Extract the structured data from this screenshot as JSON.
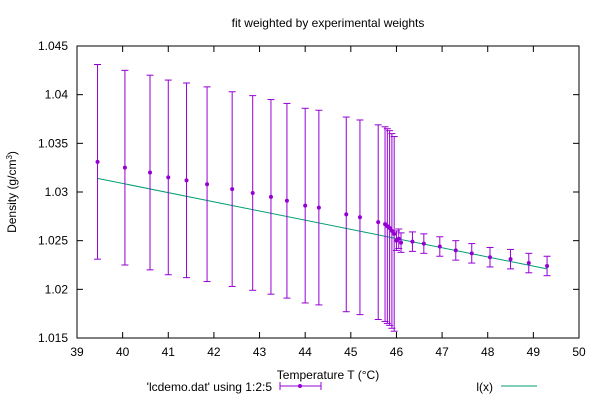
{
  "chart_data": {
    "type": "scatter",
    "title": "fit weighted by experimental weights",
    "xlabel": "Temperature T (°C)",
    "ylabel_main": "Density (g/cm",
    "ylabel_sup": "3",
    "ylabel_end": ")",
    "xlim": [
      39,
      50
    ],
    "ylim": [
      1.015,
      1.045
    ],
    "xticks": [
      39,
      40,
      41,
      42,
      43,
      44,
      45,
      46,
      47,
      48,
      49,
      50
    ],
    "yticks": [
      1.015,
      1.02,
      1.025,
      1.03,
      1.035,
      1.04,
      1.045
    ],
    "grid": false,
    "legend_position": "bottom",
    "series": [
      {
        "name": "'lcdemo.dat' using 1:2:5",
        "kind": "points_with_errorbars",
        "color": "#9400d3",
        "x": [
          39.45,
          40.05,
          40.6,
          41.0,
          41.4,
          41.85,
          42.4,
          42.85,
          43.25,
          43.6,
          44.0,
          44.3,
          44.9,
          45.2,
          45.6,
          45.75,
          45.8,
          45.85,
          45.9,
          45.95,
          46.0,
          46.05,
          46.1,
          46.35,
          46.6,
          46.95,
          47.3,
          47.65,
          48.05,
          48.5,
          48.9,
          49.3
        ],
        "y": [
          1.0331,
          1.0325,
          1.032,
          1.0315,
          1.0312,
          1.0308,
          1.0303,
          1.0299,
          1.0295,
          1.0291,
          1.0286,
          1.0284,
          1.0277,
          1.0274,
          1.0269,
          1.0267,
          1.0265,
          1.0263,
          1.026,
          1.0257,
          1.025,
          1.0252,
          1.0248,
          1.0249,
          1.0247,
          1.0244,
          1.024,
          1.0237,
          1.0233,
          1.0231,
          1.0227,
          1.0224
        ],
        "yerr": [
          0.01,
          0.01,
          0.01,
          0.01,
          0.01,
          0.01,
          0.01,
          0.01,
          0.01,
          0.01,
          0.01,
          0.01,
          0.01,
          0.01,
          0.01,
          0.01,
          0.01,
          0.01,
          0.01,
          0.01,
          0.001,
          0.001,
          0.001,
          0.001,
          0.001,
          0.001,
          0.001,
          0.001,
          0.001,
          0.001,
          0.001,
          0.001
        ]
      },
      {
        "name": "l(x)",
        "kind": "line",
        "color": "#009e73",
        "x": [
          39.45,
          49.3
        ],
        "y": [
          1.0314,
          1.0221
        ]
      }
    ]
  }
}
